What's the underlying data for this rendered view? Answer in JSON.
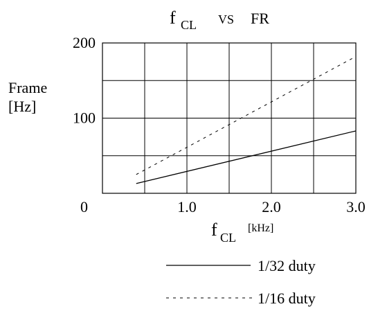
{
  "chart_data": {
    "type": "line",
    "title": {
      "f": "f",
      "sub": "CL",
      "vs": "VS",
      "fr": "FR"
    },
    "y_axis": {
      "label_line1": "Frame",
      "label_line2": "[Hz]",
      "range": [
        0,
        200
      ],
      "gridlines": [
        0,
        50,
        100,
        150,
        200
      ],
      "tick_labels": [
        {
          "value": 200,
          "text": "200"
        },
        {
          "value": 100,
          "text": "100"
        }
      ]
    },
    "x_axis": {
      "label_main": "f",
      "label_sub": "CL",
      "label_unit": "[kHz]",
      "range": [
        0,
        3.0
      ],
      "gridlines": [
        0,
        0.5,
        1.0,
        1.5,
        2.0,
        2.5,
        3.0
      ],
      "origin_label": "0",
      "tick_labels": [
        {
          "value": 1.0,
          "text": "1.0"
        },
        {
          "value": 2.0,
          "text": "2.0"
        },
        {
          "value": 3.0,
          "text": "3.0"
        }
      ]
    },
    "grid": true,
    "series": [
      {
        "name": "1/32 duty",
        "style": "solid",
        "color": "#000000",
        "points": [
          [
            0.4,
            13
          ],
          [
            3.0,
            83
          ]
        ]
      },
      {
        "name": "1/16 duty",
        "style": "dashed",
        "color": "#000000",
        "points": [
          [
            0.4,
            25
          ],
          [
            3.0,
            182
          ]
        ]
      }
    ],
    "legend": {
      "placement": "bottom-right",
      "entries": [
        "1/32 duty",
        "1/16 duty"
      ]
    }
  }
}
